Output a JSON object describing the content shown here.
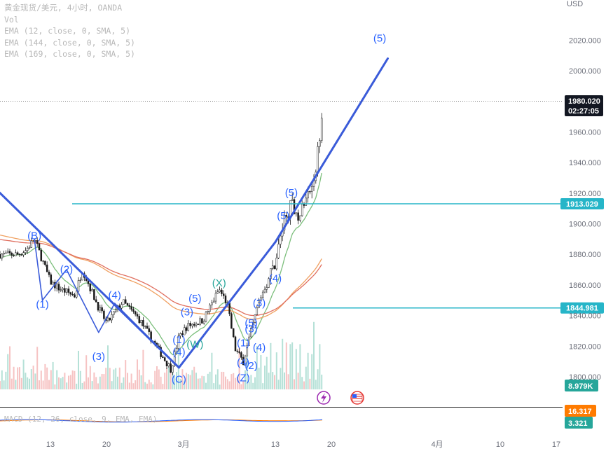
{
  "legend": {
    "title": "黄金现货/美元, 4小时, OANDA",
    "vol": "Vol",
    "ema1": "EMA (12, close, 0, SMA, 5)",
    "ema2": "EMA (144, close, 0, SMA, 5)",
    "ema3": "EMA (169, close, 0, SMA, 5)",
    "macd": "MACD (12, 26, close, 9, EMA, EMA)"
  },
  "colors": {
    "wave_blue": "#2962ff",
    "wave_green": "#26a69a",
    "line_blue": "#3a5bd9",
    "hline_cyan": "#26b5c8",
    "price_tag": "#131722",
    "ema_orange": "#f0a060",
    "ema_red": "#e07060",
    "ema_green": "#7cbf7c",
    "vol_up": "#a8dcd0",
    "vol_down": "#f4b8b8",
    "macd_orange": "#ff7b00",
    "macd_teal": "#26a69a"
  },
  "chart_data": {
    "type": "candlestick",
    "symbol": "黄金现货/美元",
    "interval": "4小时",
    "source": "OANDA",
    "currency": "USD",
    "y_axis": {
      "ticks": [
        "2020.000",
        "2000.000",
        "1980.000",
        "1960.000",
        "1940.000",
        "1920.000",
        "1900.000",
        "1880.000",
        "1860.000",
        "1840.000",
        "1820.000",
        "1800.000"
      ],
      "range": [
        1790,
        2035
      ]
    },
    "x_axis": {
      "ticks": [
        "13",
        "20",
        "3月",
        "13",
        "20",
        "4月",
        "10",
        "17"
      ]
    },
    "last_price": {
      "value": "1980.020",
      "countdown": "02:27:05"
    },
    "horizontal_levels": [
      {
        "value": 1913.029,
        "label": "1913.029"
      },
      {
        "value": 1844.981,
        "label": "1844.981"
      }
    ],
    "volume_label": "8.979K",
    "macd_values": [
      "16.317",
      "3.321"
    ],
    "price_path": [
      [
        "02-09",
        1880
      ],
      [
        "02-10",
        1883
      ],
      [
        "02-11",
        1890
      ],
      [
        "02-13",
        1862
      ],
      [
        "02-14",
        1858
      ],
      [
        "02-16",
        1853
      ],
      [
        "02-17",
        1870
      ],
      [
        "02-19",
        1845
      ],
      [
        "02-20",
        1835
      ],
      [
        "02-22",
        1849
      ],
      [
        "02-24",
        1838
      ],
      [
        "02-27",
        1813
      ],
      [
        "02-28",
        1805
      ],
      [
        "03-01",
        1826
      ],
      [
        "03-02",
        1833
      ],
      [
        "03-04",
        1837
      ],
      [
        "03-06",
        1857
      ],
      [
        "03-07",
        1848
      ],
      [
        "03-08",
        1818
      ],
      [
        "03-09",
        1810
      ],
      [
        "03-10",
        1830
      ],
      [
        "03-11",
        1850
      ],
      [
        "03-13",
        1875
      ],
      [
        "03-14",
        1900
      ],
      [
        "03-15",
        1913
      ],
      [
        "03-16",
        1905
      ],
      [
        "03-17",
        1918
      ],
      [
        "03-18",
        1935
      ],
      [
        "03-19",
        1980
      ]
    ],
    "wave_labels": [
      {
        "text": "(B)",
        "date": "02-11",
        "price": 1890,
        "color": "blue"
      },
      {
        "text": "(2)",
        "date": "02-15",
        "price": 1868,
        "color": "blue"
      },
      {
        "text": "(1)",
        "date": "02-12",
        "price": 1845,
        "color": "blue"
      },
      {
        "text": "(4)",
        "date": "02-21",
        "price": 1851,
        "color": "blue"
      },
      {
        "text": "(3)",
        "date": "02-19",
        "price": 1811,
        "color": "blue"
      },
      {
        "text": "(5)",
        "date": "03-03",
        "price": 1849,
        "color": "blue"
      },
      {
        "text": "(3)",
        "date": "03-02",
        "price": 1840,
        "color": "blue"
      },
      {
        "text": "(X)",
        "date": "03-06",
        "price": 1859,
        "color": "green"
      },
      {
        "text": "(W)",
        "date": "03-03",
        "price": 1819,
        "color": "green"
      },
      {
        "text": "(1)",
        "date": "03-01",
        "price": 1822,
        "color": "blue"
      },
      {
        "text": "(4)",
        "date": "03-01",
        "price": 1814,
        "color": "blue"
      },
      {
        "text": "(C)",
        "date": "03-01",
        "price": 1796,
        "color": "blue"
      },
      {
        "text": "(5)",
        "date": "03-15",
        "price": 1918,
        "color": "blue"
      },
      {
        "text": "(5)",
        "date": "03-14",
        "price": 1903,
        "color": "blue"
      },
      {
        "text": "(4)",
        "date": "03-13",
        "price": 1862,
        "color": "blue"
      },
      {
        "text": "(3)",
        "date": "03-11",
        "price": 1846,
        "color": "blue"
      },
      {
        "text": "(5)",
        "date": "03-10",
        "price": 1833,
        "color": "blue"
      },
      {
        "text": "(3)",
        "date": "03-10",
        "price": 1829,
        "color": "blue"
      },
      {
        "text": "(1)",
        "date": "03-09",
        "price": 1820,
        "color": "blue"
      },
      {
        "text": "(4)",
        "date": "03-11",
        "price": 1817,
        "color": "blue"
      },
      {
        "text": "(4)",
        "date": "03-09",
        "price": 1807,
        "color": "blue"
      },
      {
        "text": "(2)",
        "date": "03-10",
        "price": 1805,
        "color": "blue"
      },
      {
        "text": "(Z)",
        "date": "03-09",
        "price": 1797,
        "color": "blue"
      },
      {
        "text": "(5)",
        "date": "03-26",
        "price": 2019,
        "color": "blue"
      }
    ],
    "trend_lines": [
      {
        "from": [
          "02-04",
          1934
        ],
        "to": [
          "03-01",
          1806
        ]
      },
      {
        "from": [
          "03-01",
          1806
        ],
        "to": [
          "03-13",
          1888
        ]
      },
      {
        "from": [
          "03-13",
          1888
        ],
        "to": [
          "03-27",
          2008
        ]
      },
      {
        "from": [
          "02-11",
          1890
        ],
        "to": [
          "02-12",
          1850
        ]
      },
      {
        "from": [
          "02-12",
          1850
        ],
        "to": [
          "02-15",
          1870
        ]
      },
      {
        "from": [
          "02-15",
          1870
        ],
        "to": [
          "02-19",
          1829
        ]
      },
      {
        "from": [
          "02-19",
          1829
        ],
        "to": [
          "02-21",
          1848
        ]
      },
      {
        "from": [
          "02-21",
          1848
        ],
        "to": [
          "03-01",
          1806
        ]
      }
    ]
  }
}
